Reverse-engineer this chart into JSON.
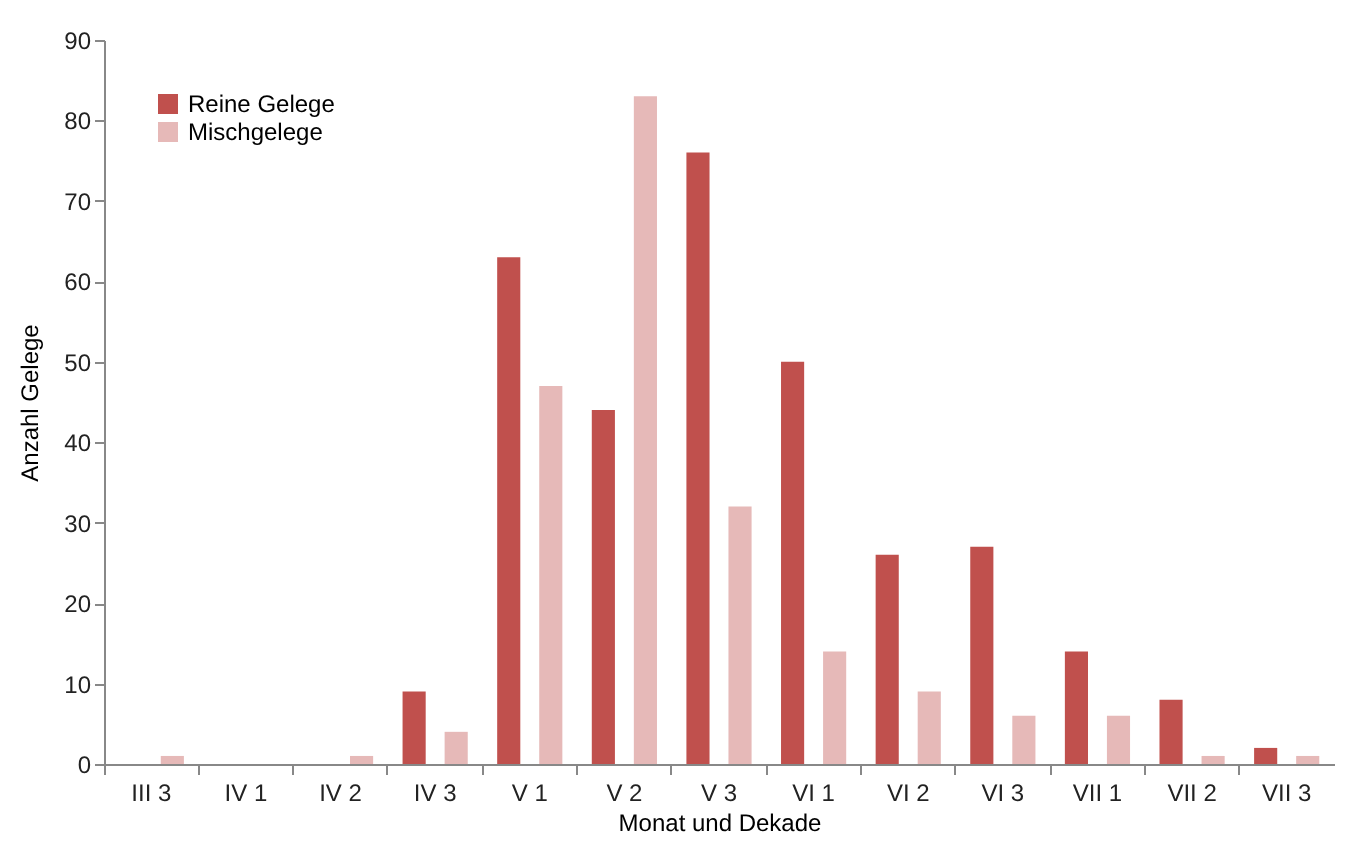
{
  "chart_data": {
    "type": "bar",
    "xlabel": "Monat und Dekade",
    "ylabel": "Anzahl Gelege",
    "categories": [
      "III 3",
      "IV 1",
      "IV 2",
      "IV 3",
      "V 1",
      "V 2",
      "V 3",
      "VI 1",
      "VI 2",
      "VI 3",
      "VII 1",
      "VII 2",
      "VII 3"
    ],
    "series": [
      {
        "name": "Reine Gelege",
        "color": "#c0504d",
        "values": [
          0,
          0,
          0,
          9,
          63,
          44,
          76,
          50,
          26,
          27,
          14,
          8,
          2
        ]
      },
      {
        "name": "Mischgelege",
        "color": "#e6b9b8",
        "values": [
          1,
          0,
          1,
          4,
          47,
          83,
          32,
          14,
          9,
          6,
          6,
          1,
          1
        ]
      }
    ],
    "ylim": [
      0,
      90
    ],
    "yticks": [
      0,
      10,
      20,
      30,
      40,
      50,
      60,
      70,
      80,
      90
    ],
    "grid": false,
    "legend": "top left"
  }
}
